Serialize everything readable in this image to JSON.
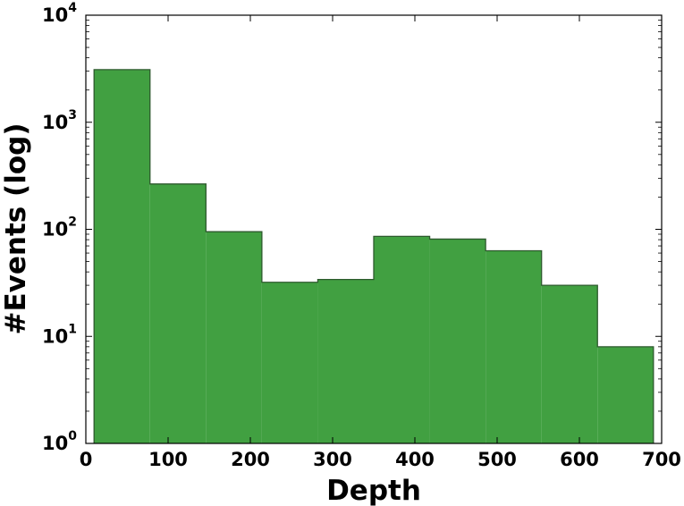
{
  "chart_data": {
    "type": "bar",
    "subtype": "histogram",
    "xlabel": "Depth",
    "ylabel": "#Events (log)",
    "xlim": [
      0,
      700
    ],
    "ylim": [
      1,
      10000
    ],
    "yscale": "log",
    "grid": false,
    "legend": "none",
    "bar_color": "#41a041",
    "edge_color": "#2e5a2e",
    "bins": [
      {
        "start": 10,
        "end": 78,
        "count": 3100
      },
      {
        "start": 78,
        "end": 146,
        "count": 265
      },
      {
        "start": 146,
        "end": 214,
        "count": 95
      },
      {
        "start": 214,
        "end": 282,
        "count": 32
      },
      {
        "start": 282,
        "end": 350,
        "count": 34
      },
      {
        "start": 350,
        "end": 418,
        "count": 86
      },
      {
        "start": 418,
        "end": 486,
        "count": 81
      },
      {
        "start": 486,
        "end": 554,
        "count": 63
      },
      {
        "start": 554,
        "end": 622,
        "count": 30
      },
      {
        "start": 622,
        "end": 690,
        "count": 8
      }
    ],
    "xticks": [
      "0",
      "100",
      "200",
      "300",
      "400",
      "500",
      "600",
      "700"
    ],
    "yticks": [
      {
        "base": "10",
        "exp": "0"
      },
      {
        "base": "10",
        "exp": "1"
      },
      {
        "base": "10",
        "exp": "2"
      },
      {
        "base": "10",
        "exp": "3"
      },
      {
        "base": "10",
        "exp": "4"
      }
    ]
  }
}
